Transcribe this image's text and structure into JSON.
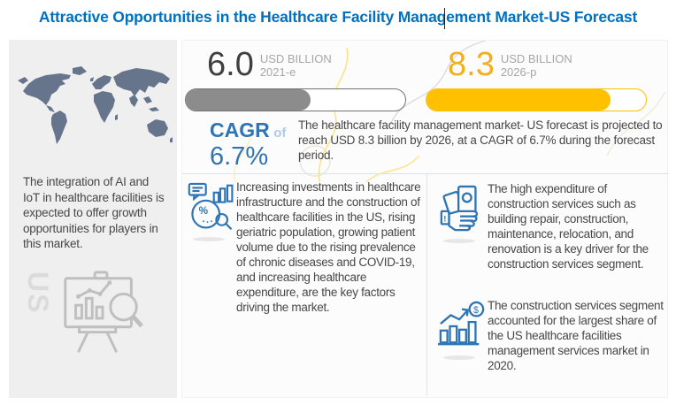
{
  "title": "Attractive Opportunities in the Healthcare Facility Management Market-US Forecast",
  "left_panel": {
    "description": "The integration of AI and IoT in healthcare facilities is expected to offer growth opportunities for players in this market.",
    "region_label": "US"
  },
  "stats": {
    "current": {
      "value": "6.0",
      "unit": "USD BILLION",
      "year": "2021-e",
      "progress_pct": 57
    },
    "forecast": {
      "value": "8.3",
      "unit": "USD BILLION",
      "year": "2026-p",
      "progress_pct": 84
    },
    "cagr": {
      "label": "CAGR",
      "connector": "of",
      "value": "6.7%"
    },
    "summary": "The healthcare facility management market- US forecast is projected to reach USD 8.3 billion by 2026, at a CAGR of 6.7% during the forecast period."
  },
  "bullets": [
    {
      "icon": "market-analysis-icon",
      "text": "Increasing investments in healthcare infrastructure and the construction of healthcare facilities in the US, rising geriatric population, growing patient volume due to the rising prevalence of chronic diseases and COVID-19, and increasing healthcare expenditure, are the key factors driving the market."
    },
    {
      "icon": "construction-expenditure-icon",
      "text": "The high expenditure of construction services such as building repair, construction, maintenance, relocation, and renovation is a key driver for the construction services segment."
    },
    {
      "icon": "market-share-icon",
      "text": "The construction services segment accounted for the largest share of the US healthcare facilities management services market in 2020."
    }
  ],
  "chart_data": {
    "type": "bar",
    "categories": [
      "2021-e",
      "2026-p"
    ],
    "values": [
      6.0,
      8.3
    ],
    "unit": "USD billion",
    "series_label": "Healthcare facility management market - US forecast",
    "cagr_pct": 6.7,
    "title": "Attractive Opportunities in the Healthcare Facility Management Market-US Forecast"
  },
  "colors": {
    "title_blue": "#0070C0",
    "accent_blue": "#2E74B5",
    "icon_blue": "#2E75B6",
    "light_blue": "#AEC9E5",
    "yellow": "#FFC000",
    "gray_bar": "#8C8C8C",
    "body_text": "#474747",
    "muted_gray": "#A6A6A6",
    "map_slate": "#66758C",
    "left_panel_bg": "#EFEFEF",
    "main_panel_bg": "#FCFCFC"
  }
}
